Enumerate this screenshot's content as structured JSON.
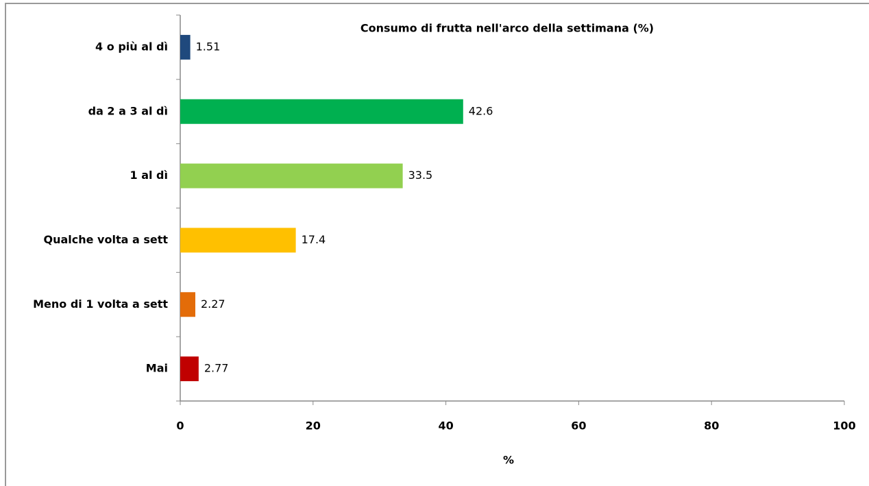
{
  "chart_data": {
    "type": "hbar",
    "title": "Consumo di frutta nell'arco della settimana (%)",
    "categories": [
      "4 o più al dì",
      "da 2 a 3 al dì",
      "1 al dì",
      "Qualche volta a sett",
      "Meno di 1 volta a sett",
      "Mai"
    ],
    "values": [
      1.51,
      42.6,
      33.5,
      17.4,
      2.27,
      2.77
    ],
    "colors": [
      "#1f497d",
      "#00b050",
      "#92d050",
      "#ffc000",
      "#e36c09",
      "#c00000"
    ],
    "value_label_color": "#ff0000",
    "xlabel": "%",
    "xlim": [
      0,
      100
    ],
    "xticks": [
      0,
      20,
      40,
      60,
      80,
      100
    ]
  }
}
